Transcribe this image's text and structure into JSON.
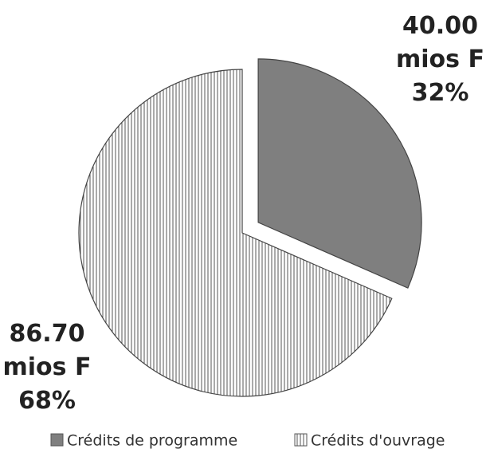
{
  "chart_data": {
    "type": "pie",
    "categories": [
      "Crédits de programme",
      "Crédits d'ouvrage"
    ],
    "values": [
      40.0,
      86.7
    ],
    "value_labels": [
      "40.00 mios F",
      "86.70 mios F"
    ],
    "percent_labels": [
      "32%",
      "68%"
    ],
    "colors": [
      "#7f7f7f",
      "#ffffff"
    ],
    "exploded": [
      true,
      false
    ],
    "legend": "bottom"
  }
}
